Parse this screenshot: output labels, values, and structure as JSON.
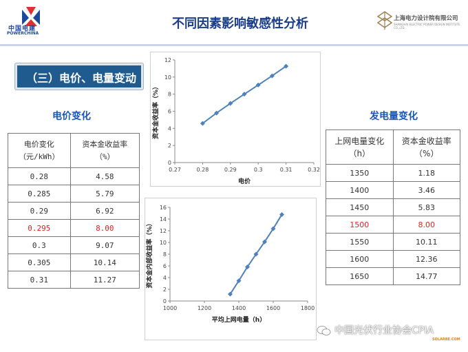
{
  "header": {
    "logo_left_line1": "中国电建",
    "logo_left_line2": "POWERCHINA",
    "title": "不同因素影响敏感性分析",
    "logo_right_line1": "上海电力设计院有限公司",
    "logo_right_line2": "SHANGHAI ELECTRIC POWER DESIGN INSTITUTE CO.,LTD"
  },
  "section": {
    "title": "（三）电价、电量变动"
  },
  "price_table": {
    "subtitle": "电价变化",
    "header_col1_line1": "电价变化",
    "header_col1_line2": "（元/kWh）",
    "header_col2_line1": "资本金收益率",
    "header_col2_line2": "（%）",
    "rows": [
      [
        "0.28",
        "4.58"
      ],
      [
        "0.285",
        "5.79"
      ],
      [
        "0.29",
        "6.92"
      ],
      [
        "0.295",
        "8.00"
      ],
      [
        "0.3",
        "9.07"
      ],
      [
        "0.305",
        "10.14"
      ],
      [
        "0.31",
        "11.27"
      ]
    ],
    "highlight_row": 3
  },
  "volume_table": {
    "subtitle": "发电量变化",
    "header_col1_line1": "上网电量变化",
    "header_col1_line2": "（h）",
    "header_col2_line1": "资本金收益率",
    "header_col2_line2": "（%）",
    "rows": [
      [
        "1350",
        "1.18"
      ],
      [
        "1400",
        "3.46"
      ],
      [
        "1450",
        "5.83"
      ],
      [
        "1500",
        "8.00"
      ],
      [
        "1550",
        "10.11"
      ],
      [
        "1600",
        "12.36"
      ],
      [
        "1650",
        "14.77"
      ]
    ],
    "highlight_row": 3
  },
  "chart_data": [
    {
      "type": "line",
      "x": [
        0.28,
        0.285,
        0.29,
        0.295,
        0.3,
        0.305,
        0.31
      ],
      "series": [
        {
          "values": [
            4.58,
            5.79,
            6.92,
            8.0,
            9.07,
            10.14,
            11.27
          ]
        }
      ],
      "xlabel": "电价",
      "ylabel": "资本金收益率（%）",
      "xlim": [
        0.27,
        0.32
      ],
      "ylim": [
        0,
        12
      ],
      "xticks": [
        "0.27",
        "0.28",
        "0.29",
        "0.3",
        "0.31",
        "0.32"
      ],
      "yticks": [
        "0",
        "2",
        "4",
        "6",
        "8",
        "10",
        "12"
      ],
      "color": "#4f81bd"
    },
    {
      "type": "line",
      "x": [
        1350,
        1400,
        1450,
        1500,
        1550,
        1600,
        1650
      ],
      "series": [
        {
          "values": [
            1.18,
            3.46,
            5.83,
            8.0,
            10.11,
            12.36,
            14.77
          ]
        }
      ],
      "xlabel": "平均上网电量（h）",
      "ylabel": "资本金内部收益率（%）",
      "xlim": [
        1000,
        1800
      ],
      "ylim": [
        0,
        16
      ],
      "xticks": [
        "1000",
        "1200",
        "1400",
        "1600",
        "1800"
      ],
      "yticks": [
        "0",
        "2",
        "4",
        "6",
        "8",
        "10",
        "12",
        "14",
        "16"
      ],
      "color": "#4f81bd"
    }
  ],
  "watermark": {
    "text": "中国光伏行业协会CPIA",
    "small": "SOLARBE.COM"
  },
  "colors": {
    "title_blue": "#1a3c8c",
    "section_bg": "#1f5b8f",
    "highlight_red": "#e02020",
    "series_blue": "#4f81bd"
  }
}
